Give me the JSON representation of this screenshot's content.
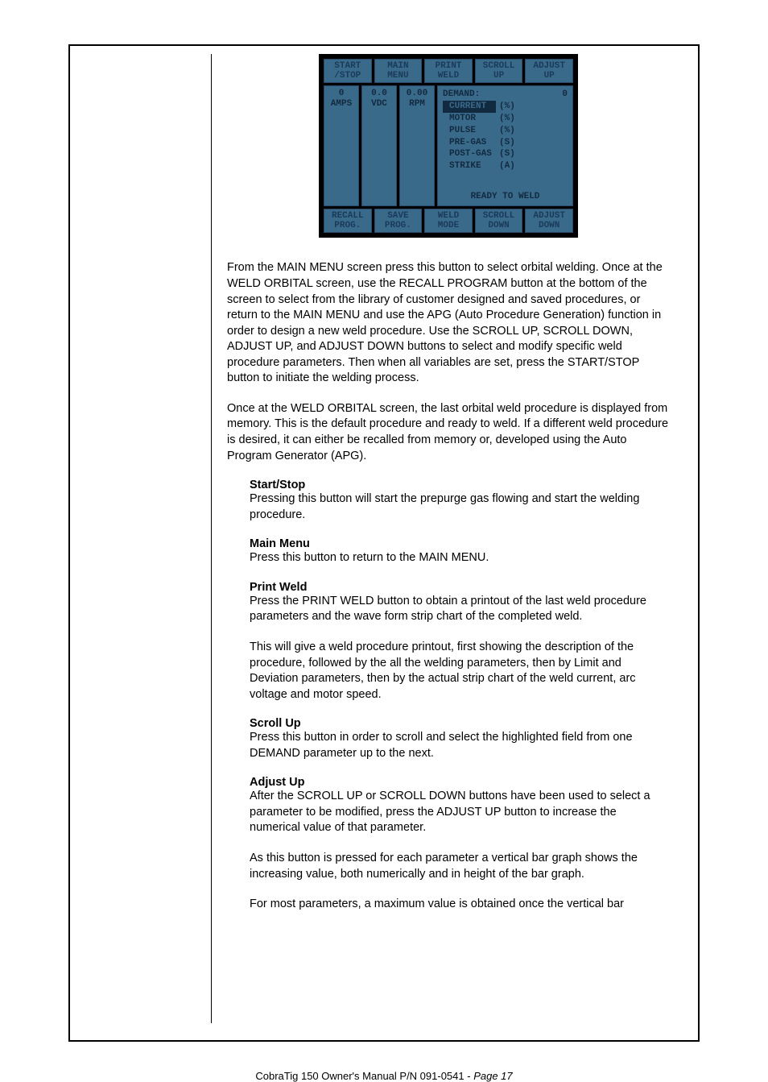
{
  "lcd": {
    "top_buttons": [
      "START\n/STOP",
      "MAIN\nMENU",
      "PRINT\nWELD",
      "SCROLL\nUP",
      "ADJUST\nUP"
    ],
    "bottom_buttons": [
      "RECALL\nPROG.",
      "SAVE\nPROG.",
      "WELD\nMODE",
      "SCROLL\nDOWN",
      "ADJUST\nDOWN"
    ],
    "readouts": [
      {
        "val": "0",
        "label": "AMPS"
      },
      {
        "val": "0.0",
        "label": "VDC"
      },
      {
        "val": "0.00",
        "label": "RPM"
      }
    ],
    "demand_title": "DEMAND:",
    "demand_top_right": "0",
    "params": [
      {
        "name": "CURRENT",
        "unit": "(%)",
        "highlight": true
      },
      {
        "name": "MOTOR",
        "unit": "(%)",
        "highlight": false
      },
      {
        "name": "PULSE",
        "unit": "(%)",
        "highlight": false
      },
      {
        "name": "PRE-GAS",
        "unit": "(S)",
        "highlight": false
      },
      {
        "name": "POST-GAS",
        "unit": "(S)",
        "highlight": false
      },
      {
        "name": "STRIKE",
        "unit": "(A)",
        "highlight": false
      }
    ],
    "status": "READY TO WELD",
    "colors": {
      "bg": "#000000",
      "panel": "#3a6a8a",
      "text": "#122a40"
    }
  },
  "body": {
    "p1": "From the MAIN MENU screen press this button to select orbital welding. Once at the WELD ORBITAL screen, use the RECALL PROGRAM button at the bottom of the screen to select from the library of customer designed and saved procedures, or return to the MAIN MENU and use the APG (Auto Procedure Generation) function in order to design a new weld procedure. Use the SCROLL UP, SCROLL DOWN, ADJUST UP, and ADJUST DOWN buttons to select and modify specific weld procedure parameters.  Then when all variables are set, press the START/STOP button to initiate the welding process.",
    "p2": "Once at the WELD ORBITAL screen, the last orbital weld procedure is displayed from memory. This is the default procedure and ready to weld.  If a different weld procedure is desired, it can either be recalled from memory or, developed using the Auto Program Generator (APG).",
    "sections": [
      {
        "heading": "Start/Stop",
        "paras": [
          "Pressing this button will start the prepurge gas flowing and start the welding procedure."
        ]
      },
      {
        "heading": "Main Menu",
        "paras": [
          "Press this button to return to the MAIN MENU."
        ]
      },
      {
        "heading": "Print Weld",
        "paras": [
          "Press the PRINT WELD button to obtain a printout of the last weld procedure parameters and the wave form strip chart of the completed weld.",
          "This will give a weld procedure printout, first showing the description of the procedure, followed by the all the welding parameters, then by Limit and Deviation parameters, then by the actual strip chart of the weld current, arc voltage and motor speed."
        ]
      },
      {
        "heading": "Scroll Up",
        "paras": [
          "Press this button in order to scroll and select the highlighted field from one DEMAND parameter up to the next."
        ]
      },
      {
        "heading": "Adjust Up",
        "paras": [
          "After the SCROLL UP or SCROLL DOWN buttons have been used to select a parameter to be modified, press the ADJUST UP button to increase the numerical value of that parameter.",
          "As this button is pressed for each parameter a vertical bar graph shows the increasing value, both numerically and in height of the bar graph.",
          "For most parameters, a maximum value is obtained once the vertical bar"
        ]
      }
    ]
  },
  "footer": {
    "left": "CobraTig 150 Owner's Manual  P/N 091-0541  -  ",
    "right": "Page 17"
  }
}
